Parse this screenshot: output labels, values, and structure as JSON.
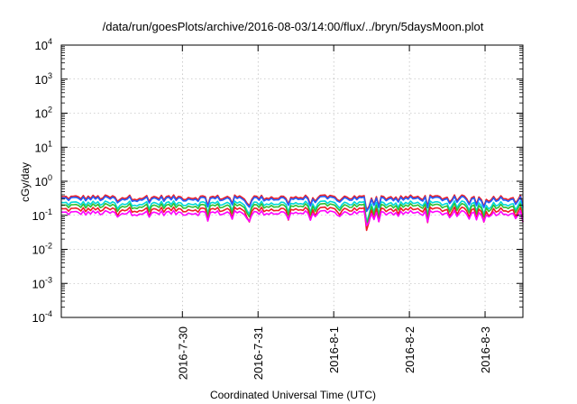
{
  "chart_data": {
    "type": "line",
    "title": "/data/run/goesPlots/archive/2016-08-03/14:00/flux/../bryn/5daysMoon.plot",
    "xlabel": "Coordinated Universal Time (UTC)",
    "ylabel": "cGy/day",
    "yscale": "log",
    "ylim_exponents": [
      -4,
      4
    ],
    "y_ticks": [
      {
        "base": "10",
        "exp": "4",
        "value": 10000
      },
      {
        "base": "10",
        "exp": "3",
        "value": 1000
      },
      {
        "base": "10",
        "exp": "2",
        "value": 100
      },
      {
        "base": "10",
        "exp": "1",
        "value": 10
      },
      {
        "base": "10",
        "exp": "0",
        "value": 1
      },
      {
        "base": "10",
        "exp": "-1",
        "value": 0.1
      },
      {
        "base": "10",
        "exp": "-2",
        "value": 0.01
      },
      {
        "base": "10",
        "exp": "-3",
        "value": 0.001
      },
      {
        "base": "10",
        "exp": "-4",
        "value": 0.0001
      }
    ],
    "xlim_days": [
      -1.6,
      4.5
    ],
    "x_ticks": [
      {
        "label": "2016-7-30",
        "day": 0
      },
      {
        "label": "2016-7-31",
        "day": 1
      },
      {
        "label": "2016-8-1",
        "day": 2
      },
      {
        "label": "2016-8-2",
        "day": 3
      },
      {
        "label": "2016-8-3",
        "day": 4
      }
    ],
    "grid": true,
    "legend": "none",
    "series": [
      {
        "color": "#ee1c24",
        "level": 0.33,
        "drop": 0.45
      },
      {
        "color": "#1f5fff",
        "level": 0.3,
        "drop": 0.45
      },
      {
        "color": "#00d8d8",
        "level": 0.22,
        "drop": 0.55
      },
      {
        "color": "#30c030",
        "level": 0.185,
        "drop": 0.55
      },
      {
        "color": "#ee1c24",
        "level": 0.145,
        "drop": 0.6
      },
      {
        "color": "#ff00ff",
        "level": 0.115,
        "drop": 0.45
      }
    ]
  }
}
